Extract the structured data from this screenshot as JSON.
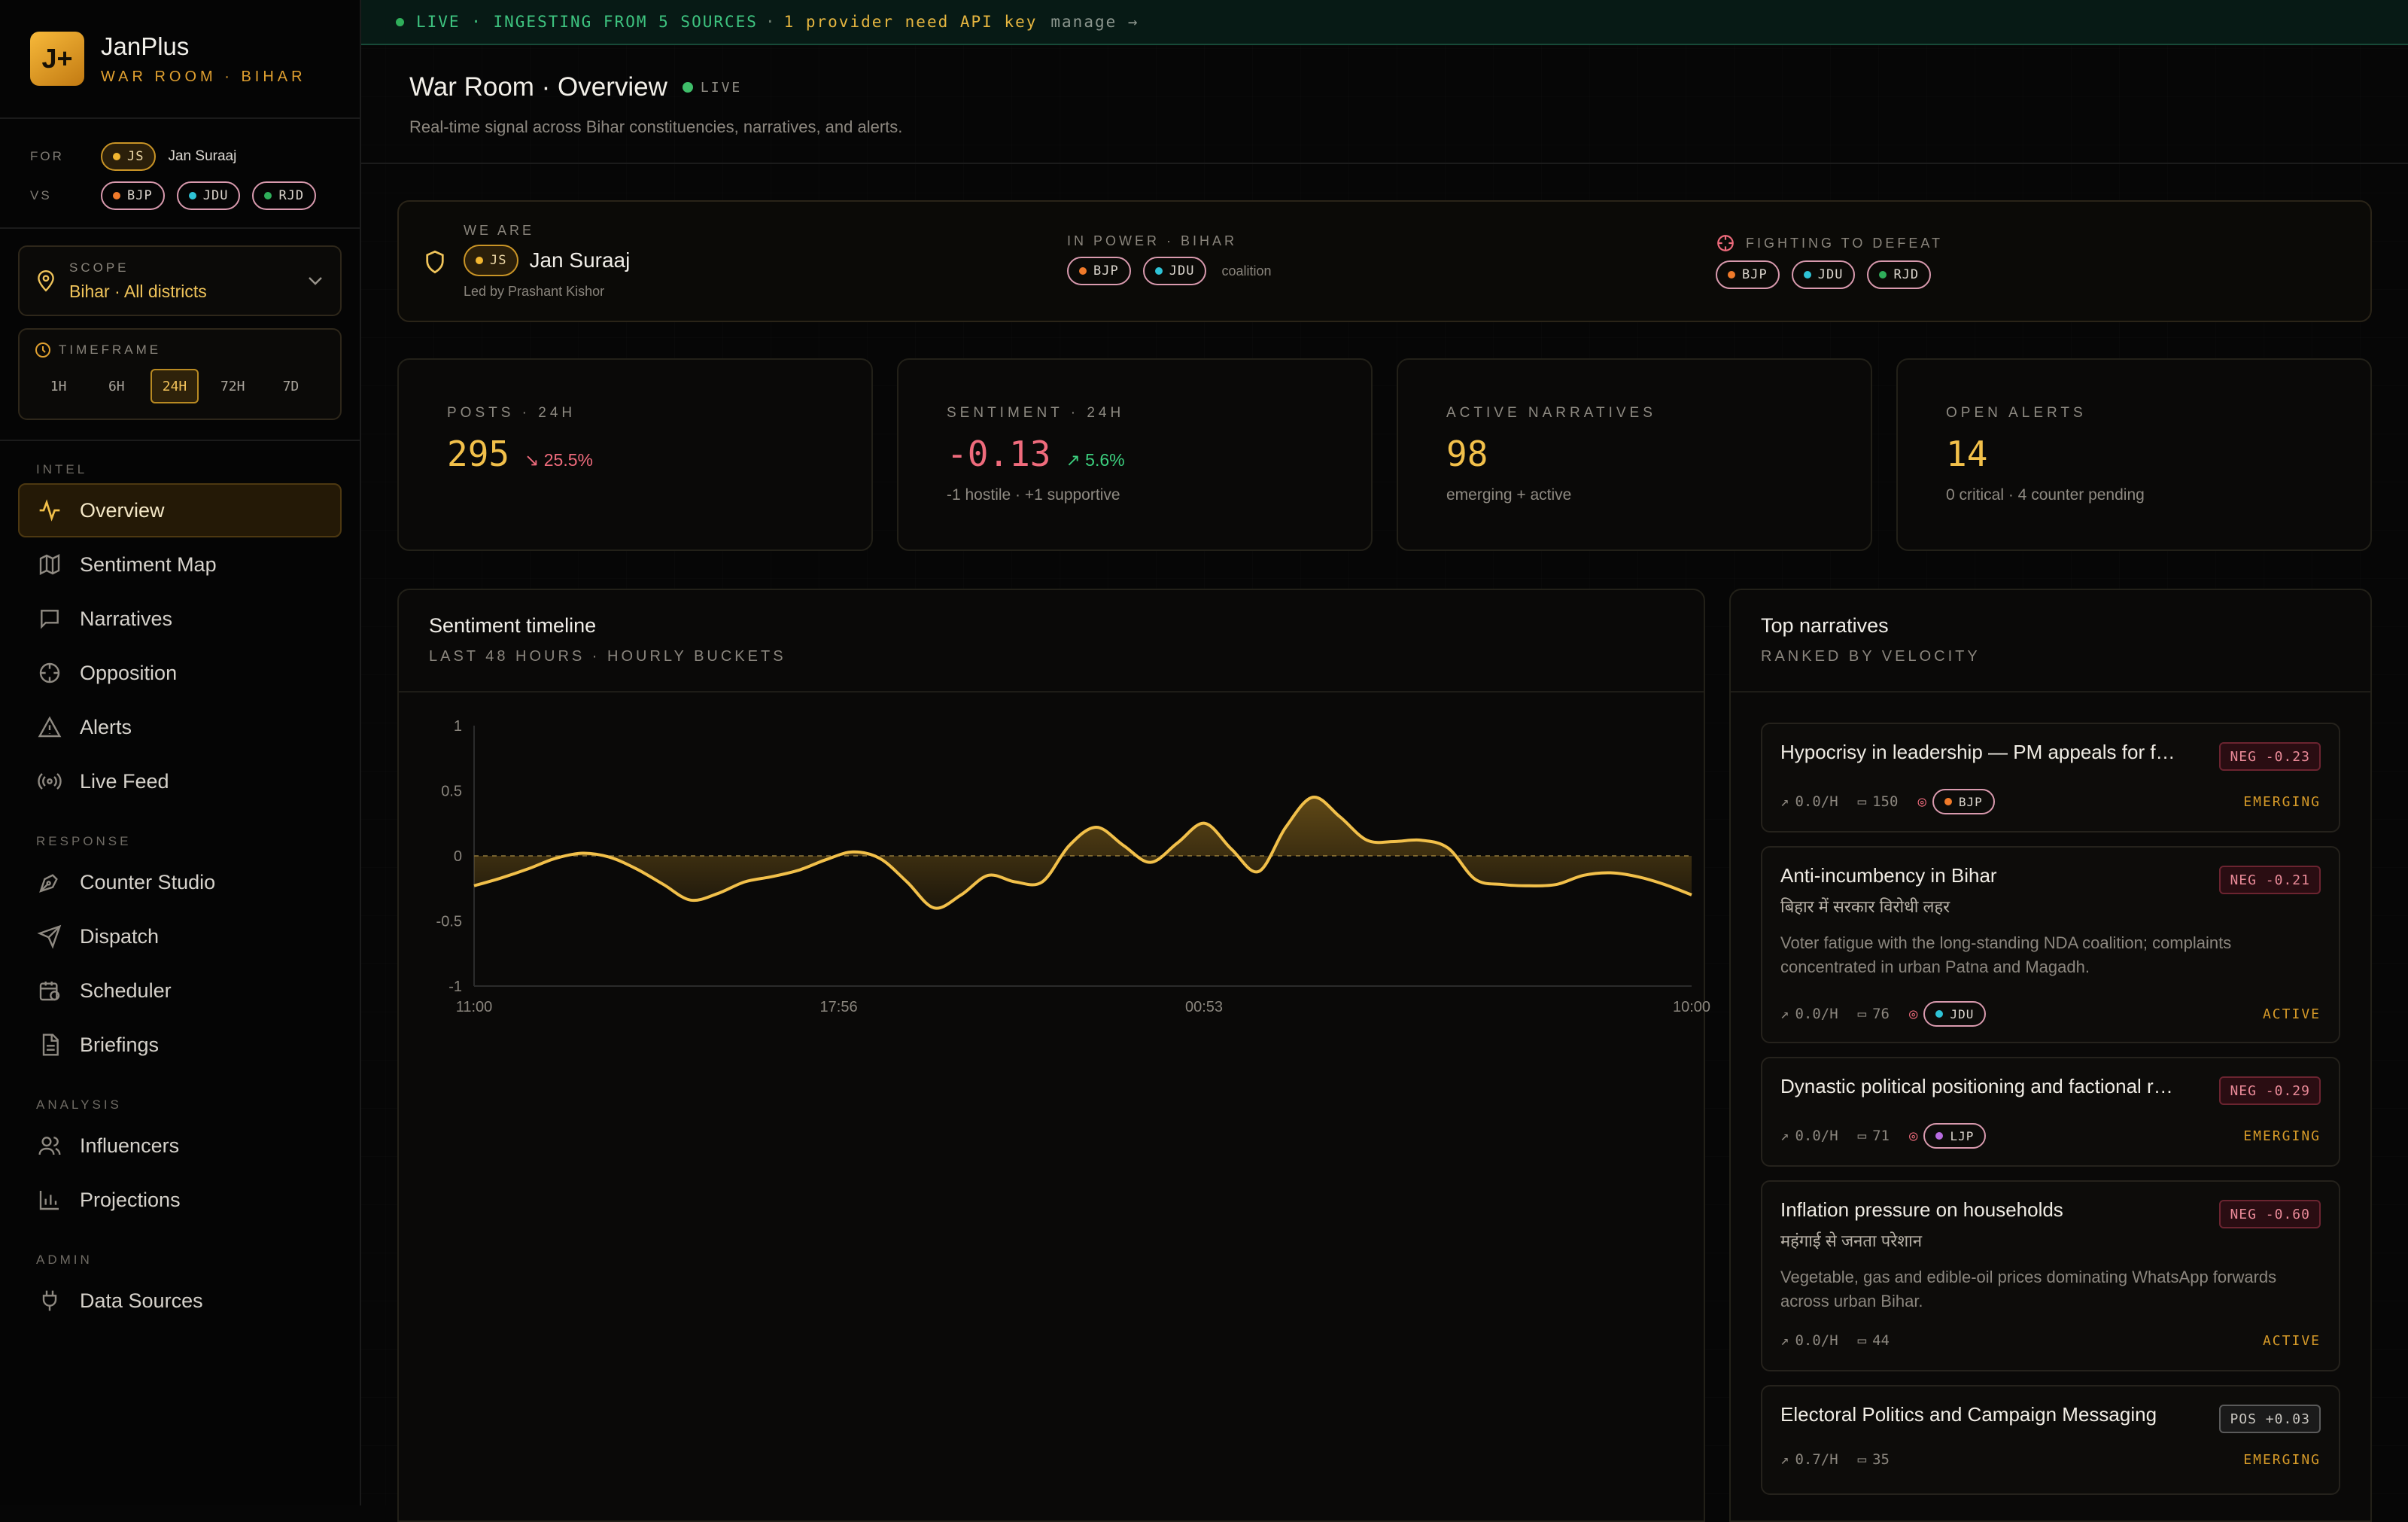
{
  "brand": {
    "name": "JanPlus",
    "subtitle": "WAR ROOM · BIHAR",
    "logo_text": "J+"
  },
  "for_vs": {
    "for_label": "FOR",
    "for_party": "JS",
    "for_name": "Jan Suraaj",
    "vs_label": "VS",
    "vs_parties": [
      {
        "code": "BJP",
        "color": "#f07a2a"
      },
      {
        "code": "JDU",
        "color": "#2ec3d6"
      },
      {
        "code": "RJD",
        "color": "#2fae5a"
      }
    ]
  },
  "scope": {
    "label": "SCOPE",
    "value": "Bihar · All districts"
  },
  "timeframe": {
    "label": "TIMEFRAME",
    "options": [
      "1H",
      "6H",
      "24H",
      "72H",
      "7D"
    ],
    "selected": "24H"
  },
  "nav": {
    "intel_label": "INTEL",
    "intel": [
      "Overview",
      "Sentiment Map",
      "Narratives",
      "Opposition",
      "Alerts",
      "Live Feed"
    ],
    "response_label": "RESPONSE",
    "response": [
      "Counter Studio",
      "Dispatch",
      "Scheduler",
      "Briefings"
    ],
    "analysis_label": "ANALYSIS",
    "analysis": [
      "Influencers",
      "Projections"
    ],
    "admin_label": "ADMIN",
    "admin": [
      "Data Sources"
    ]
  },
  "topbar": {
    "live": "LIVE · INGESTING FROM 5 SOURCES",
    "sep": "·",
    "warning": "1 provider need API key",
    "manage": "manage →"
  },
  "header": {
    "title": "War Room · Overview",
    "live": "LIVE",
    "subtitle": "Real-time signal across Bihar constituencies, narratives, and alerts."
  },
  "identity": {
    "we_are_label": "WE ARE",
    "party": "JS",
    "name": "Jan Suraaj",
    "leader": "Led by Prashant Kishor",
    "in_power_label": "IN POWER · BIHAR",
    "coalition_label": "coalition",
    "fighting_label": "FIGHTING TO DEFEAT"
  },
  "stats": [
    {
      "label": "POSTS · 24H",
      "value": "295",
      "delta": "25.5%",
      "direction": "down",
      "color": "#f2c04a",
      "delta_color": "#ef6b7c",
      "footer": ""
    },
    {
      "label": "SENTIMENT · 24H",
      "value": "-0.13",
      "delta": "5.6%",
      "direction": "up",
      "color": "#ef6b7c",
      "delta_color": "#3ccf7e",
      "footer": "-1 hostile · +1 supportive"
    },
    {
      "label": "ACTIVE NARRATIVES",
      "value": "98",
      "delta": "",
      "direction": "",
      "color": "#f2c04a",
      "delta_color": "",
      "footer": "emerging + active"
    },
    {
      "label": "OPEN ALERTS",
      "value": "14",
      "delta": "",
      "direction": "",
      "color": "#f2c04a",
      "delta_color": "",
      "footer": "0 critical · 4 counter pending"
    }
  ],
  "timeline": {
    "title": "Sentiment timeline",
    "subtitle": "LAST 48 HOURS · HOURLY BUCKETS"
  },
  "chart_data": {
    "type": "area",
    "title": "Sentiment timeline",
    "ylim": [
      -1,
      1
    ],
    "yticks": [
      "1",
      "0.5",
      "0",
      "-0.5",
      "-1"
    ],
    "xticks": [
      "11:00",
      "17:56",
      "00:53",
      "10:00"
    ],
    "series": [
      {
        "color": "#f2c04a",
        "values": [
          -0.23,
          -0.17,
          -0.1,
          -0.02,
          0.02,
          -0.01,
          -0.1,
          -0.22,
          -0.34,
          -0.29,
          -0.2,
          -0.16,
          -0.11,
          -0.03,
          0.03,
          -0.02,
          -0.2,
          -0.4,
          -0.3,
          -0.15,
          -0.2,
          -0.2,
          0.08,
          0.22,
          0.08,
          -0.05,
          0.1,
          0.25,
          0.05,
          -0.12,
          0.22,
          0.45,
          0.3,
          0.12,
          0.11,
          0.12,
          0.06,
          -0.18,
          -0.22,
          -0.23,
          -0.22,
          -0.15,
          -0.13,
          -0.16,
          -0.22,
          -0.3
        ]
      }
    ]
  },
  "narratives": {
    "title": "Top narratives",
    "subtitle": "RANKED BY VELOCITY",
    "items": [
      {
        "title": "Hypocrisy in leadership — PM appeals for f…",
        "hindi": "",
        "desc": "",
        "tag": "NEG -0.23",
        "tag_type": "neg",
        "velocity": "0.0/H",
        "comments": "150",
        "party": "BJP",
        "party_color": "#f07a2a",
        "status": "EMERGING"
      },
      {
        "title": "Anti-incumbency in Bihar",
        "hindi": "बिहार में सरकार विरोधी लहर",
        "desc": "Voter fatigue with the long-standing NDA coalition; complaints concentrated in urban Patna and Magadh.",
        "tag": "NEG -0.21",
        "tag_type": "neg",
        "velocity": "0.0/H",
        "comments": "76",
        "party": "JDU",
        "party_color": "#2ec3d6",
        "status": "ACTIVE"
      },
      {
        "title": "Dynastic political positioning and factional r…",
        "hindi": "",
        "desc": "",
        "tag": "NEG -0.29",
        "tag_type": "neg",
        "velocity": "0.0/H",
        "comments": "71",
        "party": "LJP",
        "party_color": "#b76be0",
        "status": "EMERGING"
      },
      {
        "title": "Inflation pressure on households",
        "hindi": "महंगाई से जनता परेशान",
        "desc": "Vegetable, gas and edible-oil prices dominating WhatsApp forwards across urban Bihar.",
        "tag": "NEG -0.60",
        "tag_type": "neg",
        "velocity": "0.0/H",
        "comments": "44",
        "party": "",
        "party_color": "",
        "status": "ACTIVE"
      },
      {
        "title": "Electoral Politics and Campaign Messaging",
        "hindi": "",
        "desc": "",
        "tag": "POS +0.03",
        "tag_type": "pos",
        "velocity": "0.7/H",
        "comments": "35",
        "party": "",
        "party_color": "",
        "status": "EMERGING"
      }
    ]
  }
}
